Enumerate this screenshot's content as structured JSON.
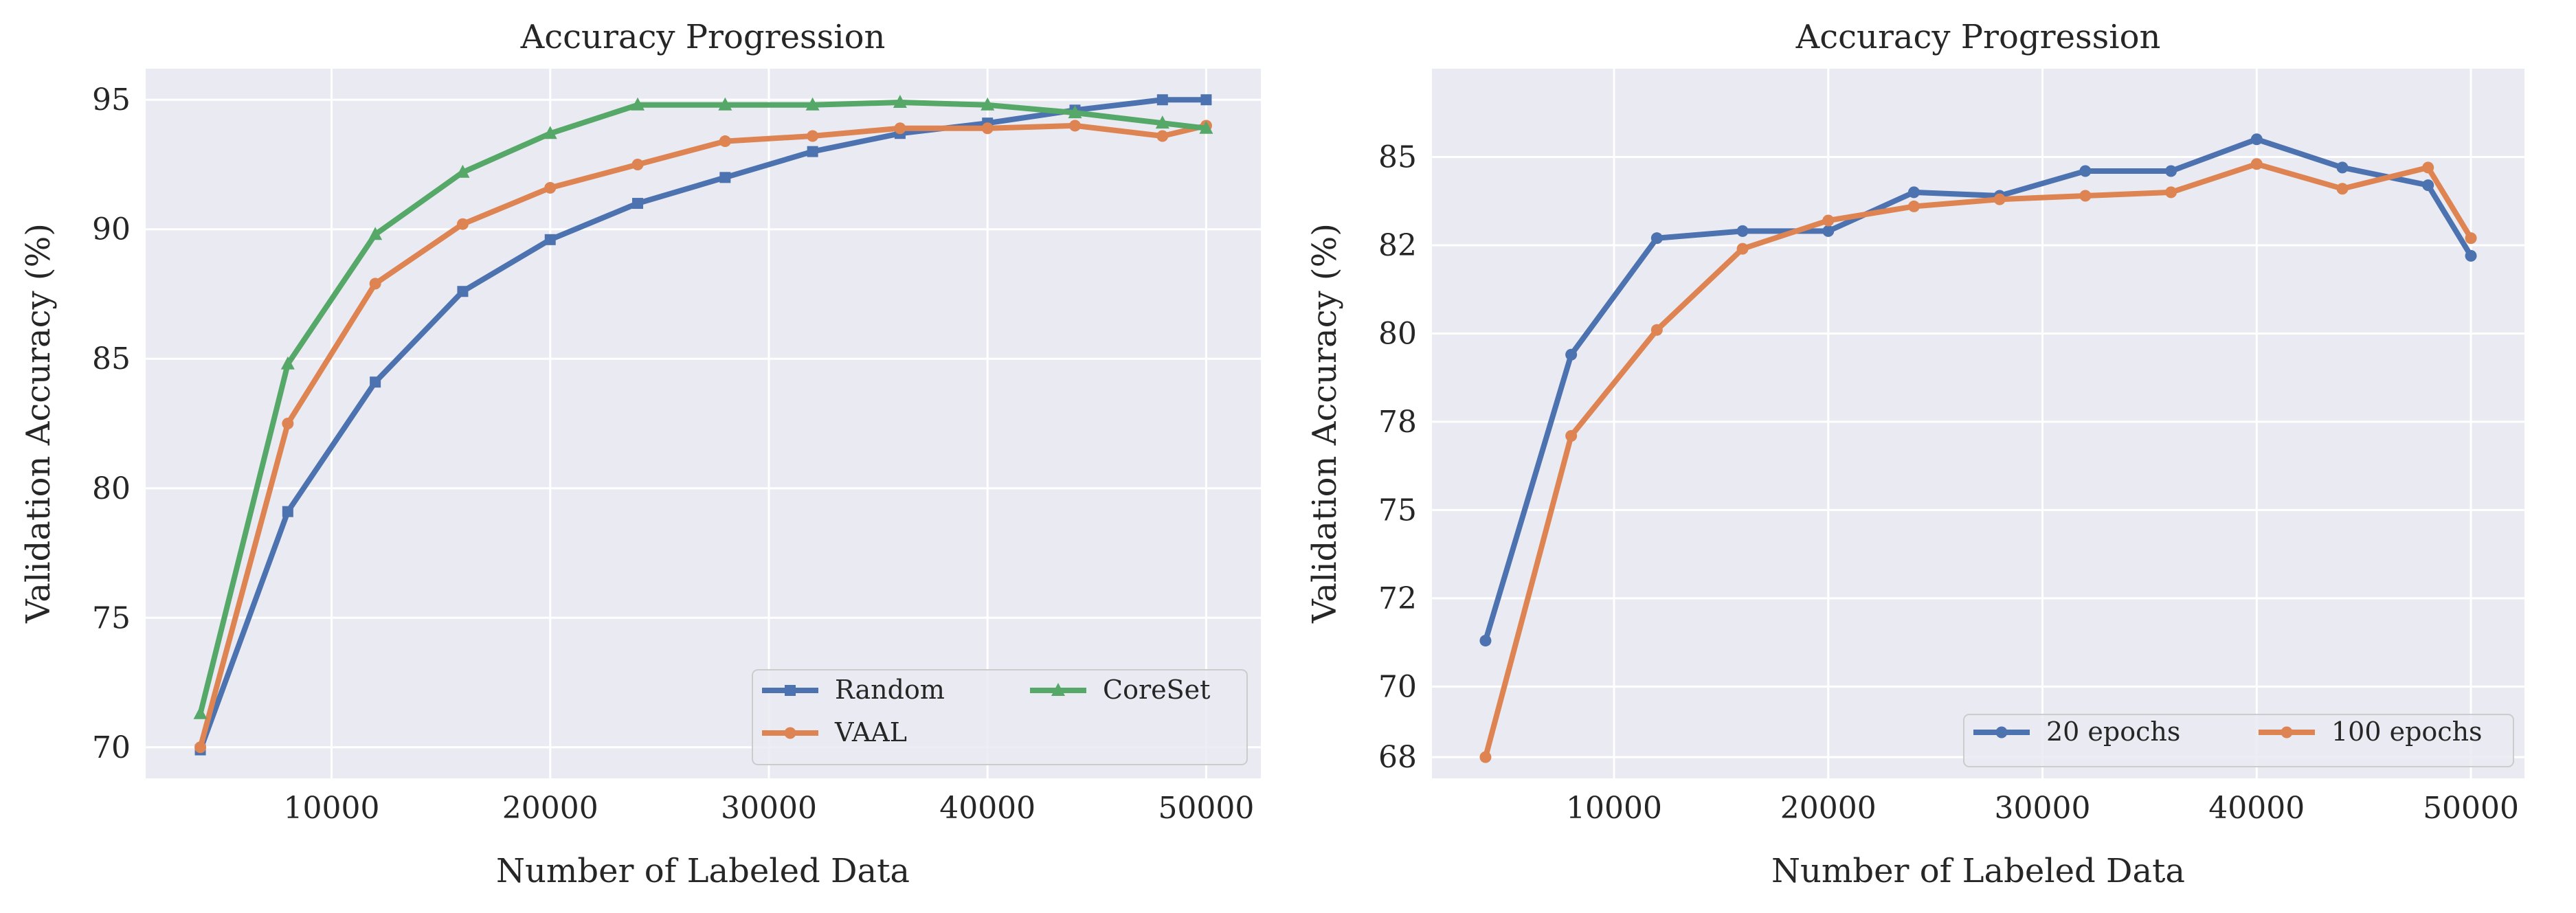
{
  "chart_data": [
    {
      "type": "line",
      "title": "Accuracy Progression",
      "xlabel": "Number of Labeled Data",
      "ylabel": "Validation Accuracy (%)",
      "xlim": [
        1500,
        52500
      ],
      "ylim": [
        68.8,
        96.2
      ],
      "xticks": [
        10000,
        20000,
        30000,
        40000,
        50000
      ],
      "yticks": [
        70,
        75,
        80,
        85,
        90,
        95
      ],
      "xtick_labels": [
        "10000",
        "20000",
        "30000",
        "40000",
        "50000"
      ],
      "ytick_labels": [
        "70",
        "75",
        "80",
        "85",
        "90",
        "95"
      ],
      "grid": true,
      "legend": {
        "location": "lower-right",
        "columns": 2
      },
      "x": [
        4000,
        8000,
        12000,
        16000,
        20000,
        24000,
        28000,
        32000,
        36000,
        40000,
        44000,
        48000,
        50000
      ],
      "series": [
        {
          "name": "Random",
          "color": "#4c72b0",
          "marker": "square",
          "values": [
            69.9,
            79.1,
            84.1,
            87.6,
            89.6,
            91.0,
            92.0,
            93.0,
            93.7,
            94.1,
            94.6,
            95.0,
            95.0
          ]
        },
        {
          "name": "VAAL",
          "color": "#dd8452",
          "marker": "circle",
          "values": [
            70.0,
            82.5,
            87.9,
            90.2,
            91.6,
            92.5,
            93.4,
            93.6,
            93.9,
            93.9,
            94.0,
            93.6,
            94.0
          ]
        },
        {
          "name": "CoreSet",
          "color": "#55a868",
          "marker": "triangle",
          "values": [
            71.3,
            84.8,
            89.8,
            92.2,
            93.7,
            94.8,
            94.8,
            94.8,
            94.9,
            94.8,
            94.5,
            94.1,
            93.9
          ]
        }
      ]
    },
    {
      "type": "line",
      "title": "Accuracy Progression",
      "xlabel": "Number of Labeled Data",
      "ylabel": "Validation Accuracy (%)",
      "xlim": [
        1500,
        52500
      ],
      "ylim": [
        67.4,
        87.5
      ],
      "xticks": [
        10000,
        20000,
        30000,
        40000,
        50000
      ],
      "yticks": [
        68,
        70,
        72.5,
        75,
        77.5,
        80,
        82.5,
        85
      ],
      "xtick_labels": [
        "10000",
        "20000",
        "30000",
        "40000",
        "50000"
      ],
      "ytick_labels": [
        "68",
        "70",
        "72",
        "75",
        "78",
        "80",
        "82",
        "85"
      ],
      "grid": true,
      "legend": {
        "location": "lower-right",
        "columns": 2
      },
      "x": [
        4000,
        8000,
        12000,
        16000,
        20000,
        24000,
        28000,
        32000,
        36000,
        40000,
        44000,
        48000,
        50000
      ],
      "series": [
        {
          "name": "20 epochs",
          "color": "#4c72b0",
          "marker": "circle",
          "values": [
            71.3,
            79.4,
            82.7,
            82.9,
            82.9,
            84.0,
            83.9,
            84.6,
            84.6,
            85.5,
            84.7,
            84.2,
            82.2
          ]
        },
        {
          "name": "100 epochs",
          "color": "#dd8452",
          "marker": "circle",
          "values": [
            68.0,
            77.1,
            80.1,
            82.4,
            83.2,
            83.6,
            83.8,
            83.9,
            84.0,
            84.8,
            84.1,
            84.7,
            82.7
          ]
        }
      ]
    }
  ]
}
